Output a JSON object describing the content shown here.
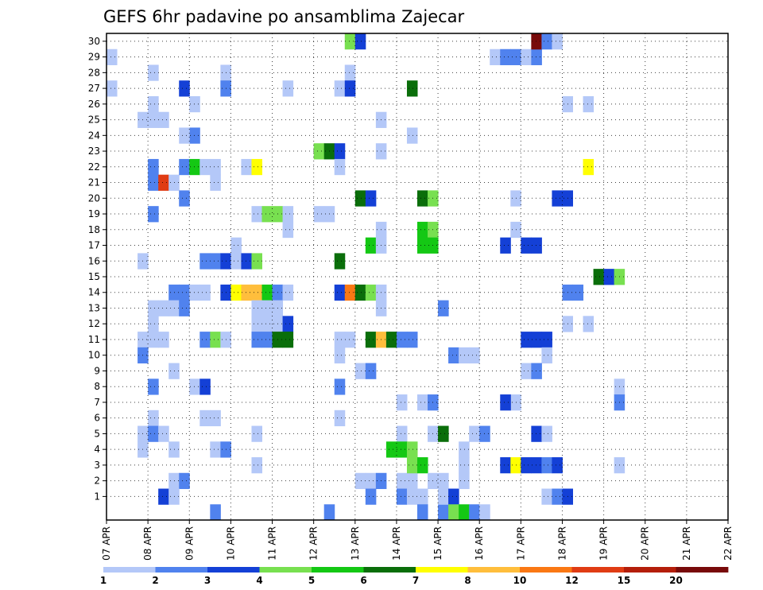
{
  "chart_data": {
    "type": "heatmap",
    "title": "GEFS 6hr padavine po ansamblima Zajecar",
    "xlabel": "",
    "ylabel": "",
    "x_tick_labels": [
      "07 APR",
      "08 APR",
      "09 APR",
      "10 APR",
      "11 APR",
      "12 APR",
      "13 APR",
      "14 APR",
      "15 APR",
      "16 APR",
      "17 APR",
      "18 APR",
      "19 APR",
      "20 APR",
      "21 APR",
      "22 APR"
    ],
    "y_tick_labels": [
      "1",
      "2",
      "3",
      "4",
      "5",
      "6",
      "7",
      "8",
      "9",
      "10",
      "11",
      "12",
      "13",
      "14",
      "15",
      "16",
      "17",
      "18",
      "19",
      "20",
      "21",
      "22",
      "23",
      "24",
      "25",
      "26",
      "27",
      "28",
      "29",
      "30"
    ],
    "x_range": [
      "07 APR 00Z",
      "22 APR 00Z"
    ],
    "y_range": [
      0,
      30
    ],
    "grid": true,
    "legend_position": "bottom",
    "legend_labels": [
      "1",
      "2",
      "3",
      "4",
      "5",
      "6",
      "7",
      "8",
      "10",
      "12",
      "15",
      "20"
    ],
    "color_scale": [
      "#b4c8f8",
      "#5082ee",
      "#1440d6",
      "#78e050",
      "#14c814",
      "#0a6e0a",
      "#ffff00",
      "#ffbe3c",
      "#fa7814",
      "#e03c14",
      "#b41e0a",
      "#780a0a"
    ],
    "cell_values": [
      {
        "col": 0,
        "row": 29,
        "cls": 0
      },
      {
        "col": 0,
        "row": 27,
        "cls": 0
      },
      {
        "col": 4,
        "row": 28,
        "cls": 0
      },
      {
        "col": 4,
        "row": 26,
        "cls": 0
      },
      {
        "col": 4,
        "row": 25,
        "cls": 0
      },
      {
        "col": 3,
        "row": 25,
        "cls": 0
      },
      {
        "col": 5,
        "row": 25,
        "cls": 0
      },
      {
        "col": 4,
        "row": 22,
        "cls": 1
      },
      {
        "col": 4,
        "row": 21,
        "cls": 1
      },
      {
        "col": 5,
        "row": 21,
        "cls": 9
      },
      {
        "col": 6,
        "row": 21,
        "cls": 0
      },
      {
        "col": 4,
        "row": 19,
        "cls": 1
      },
      {
        "col": 3,
        "row": 16,
        "cls": 0
      },
      {
        "col": 4,
        "row": 13,
        "cls": 0
      },
      {
        "col": 5,
        "row": 13,
        "cls": 0
      },
      {
        "col": 4,
        "row": 12,
        "cls": 0
      },
      {
        "col": 3,
        "row": 11,
        "cls": 0
      },
      {
        "col": 4,
        "row": 11,
        "cls": 0
      },
      {
        "col": 5,
        "row": 11,
        "cls": 0
      },
      {
        "col": 3,
        "row": 10,
        "cls": 1
      },
      {
        "col": 6,
        "row": 9,
        "cls": 0
      },
      {
        "col": 4,
        "row": 8,
        "cls": 1
      },
      {
        "col": 4,
        "row": 6,
        "cls": 0
      },
      {
        "col": 3,
        "row": 5,
        "cls": 0
      },
      {
        "col": 4,
        "row": 5,
        "cls": 1
      },
      {
        "col": 5,
        "row": 5,
        "cls": 0
      },
      {
        "col": 3,
        "row": 4,
        "cls": 0
      },
      {
        "col": 6,
        "row": 4,
        "cls": 0
      },
      {
        "col": 6,
        "row": 2,
        "cls": 0
      },
      {
        "col": 7,
        "row": 2,
        "cls": 1
      },
      {
        "col": 5,
        "row": 1,
        "cls": 2
      },
      {
        "col": 6,
        "row": 1,
        "cls": 0
      },
      {
        "col": 7,
        "row": 27,
        "cls": 2
      },
      {
        "col": 8,
        "row": 26,
        "cls": 0
      },
      {
        "col": 8,
        "row": 24,
        "cls": 1
      },
      {
        "col": 7,
        "row": 24,
        "cls": 0
      },
      {
        "col": 7,
        "row": 22,
        "cls": 1
      },
      {
        "col": 8,
        "row": 22,
        "cls": 4
      },
      {
        "col": 9,
        "row": 22,
        "cls": 0
      },
      {
        "col": 10,
        "row": 22,
        "cls": 0
      },
      {
        "col": 10,
        "row": 21,
        "cls": 0
      },
      {
        "col": 7,
        "row": 20,
        "cls": 1
      },
      {
        "col": 9,
        "row": 16,
        "cls": 1
      },
      {
        "col": 10,
        "row": 16,
        "cls": 1
      },
      {
        "col": 11,
        "row": 16,
        "cls": 2
      },
      {
        "col": 6,
        "row": 14,
        "cls": 1
      },
      {
        "col": 7,
        "row": 14,
        "cls": 1
      },
      {
        "col": 8,
        "row": 14,
        "cls": 0
      },
      {
        "col": 6,
        "row": 13,
        "cls": 0
      },
      {
        "col": 7,
        "row": 13,
        "cls": 1
      },
      {
        "col": 9,
        "row": 14,
        "cls": 0
      },
      {
        "col": 9,
        "row": 11,
        "cls": 1
      },
      {
        "col": 10,
        "row": 11,
        "cls": 3
      },
      {
        "col": 11,
        "row": 11,
        "cls": 0
      },
      {
        "col": 8,
        "row": 8,
        "cls": 0
      },
      {
        "col": 9,
        "row": 8,
        "cls": 2
      },
      {
        "col": 9,
        "row": 6,
        "cls": 0
      },
      {
        "col": 10,
        "row": 6,
        "cls": 0
      },
      {
        "col": 10,
        "row": 4,
        "cls": 0
      },
      {
        "col": 11,
        "row": 4,
        "cls": 1
      },
      {
        "col": 10,
        "row": 0,
        "cls": 1
      },
      {
        "col": 11,
        "row": 28,
        "cls": 0
      },
      {
        "col": 11,
        "row": 27,
        "cls": 1
      },
      {
        "col": 13,
        "row": 22,
        "cls": 0
      },
      {
        "col": 14,
        "row": 22,
        "cls": 6
      },
      {
        "col": 12,
        "row": 17,
        "cls": 0
      },
      {
        "col": 12,
        "row": 16,
        "cls": 0
      },
      {
        "col": 13,
        "row": 16,
        "cls": 2
      },
      {
        "col": 14,
        "row": 16,
        "cls": 3
      },
      {
        "col": 11,
        "row": 14,
        "cls": 2
      },
      {
        "col": 12,
        "row": 14,
        "cls": 6
      },
      {
        "col": 13,
        "row": 14,
        "cls": 7
      },
      {
        "col": 14,
        "row": 14,
        "cls": 7
      },
      {
        "col": 15,
        "row": 14,
        "cls": 4
      },
      {
        "col": 16,
        "row": 14,
        "cls": 1
      },
      {
        "col": 17,
        "row": 14,
        "cls": 0
      },
      {
        "col": 14,
        "row": 19,
        "cls": 0
      },
      {
        "col": 15,
        "row": 19,
        "cls": 3
      },
      {
        "col": 16,
        "row": 19,
        "cls": 3
      },
      {
        "col": 17,
        "row": 19,
        "cls": 0
      },
      {
        "col": 14,
        "row": 13,
        "cls": 0
      },
      {
        "col": 15,
        "row": 13,
        "cls": 0
      },
      {
        "col": 16,
        "row": 13,
        "cls": 0
      },
      {
        "col": 14,
        "row": 12,
        "cls": 0
      },
      {
        "col": 15,
        "row": 12,
        "cls": 0
      },
      {
        "col": 16,
        "row": 12,
        "cls": 0
      },
      {
        "col": 17,
        "row": 12,
        "cls": 2
      },
      {
        "col": 14,
        "row": 11,
        "cls": 1
      },
      {
        "col": 15,
        "row": 11,
        "cls": 1
      },
      {
        "col": 16,
        "row": 11,
        "cls": 5
      },
      {
        "col": 17,
        "row": 11,
        "cls": 5
      },
      {
        "col": 14,
        "row": 5,
        "cls": 0
      },
      {
        "col": 14,
        "row": 3,
        "cls": 0
      },
      {
        "col": 17,
        "row": 27,
        "cls": 0
      },
      {
        "col": 17,
        "row": 18,
        "cls": 0
      },
      {
        "col": 20,
        "row": 23,
        "cls": 3
      },
      {
        "col": 21,
        "row": 23,
        "cls": 5
      },
      {
        "col": 22,
        "row": 23,
        "cls": 2
      },
      {
        "col": 20,
        "row": 19,
        "cls": 0
      },
      {
        "col": 21,
        "row": 19,
        "cls": 0
      },
      {
        "col": 22,
        "row": 16,
        "cls": 5
      },
      {
        "col": 21,
        "row": 0,
        "cls": 1
      },
      {
        "col": 23,
        "row": 30,
        "cls": 3
      },
      {
        "col": 24,
        "row": 30,
        "cls": 2
      },
      {
        "col": 23,
        "row": 28,
        "cls": 0
      },
      {
        "col": 22,
        "row": 27,
        "cls": 0
      },
      {
        "col": 23,
        "row": 27,
        "cls": 2
      },
      {
        "col": 22,
        "row": 22,
        "cls": 0
      },
      {
        "col": 24,
        "row": 20,
        "cls": 5
      },
      {
        "col": 25,
        "row": 20,
        "cls": 2
      },
      {
        "col": 25,
        "row": 17,
        "cls": 4
      },
      {
        "col": 26,
        "row": 17,
        "cls": 0
      },
      {
        "col": 22,
        "row": 14,
        "cls": 2
      },
      {
        "col": 23,
        "row": 14,
        "cls": 8
      },
      {
        "col": 24,
        "row": 14,
        "cls": 5
      },
      {
        "col": 25,
        "row": 14,
        "cls": 3
      },
      {
        "col": 26,
        "row": 14,
        "cls": 0
      },
      {
        "col": 22,
        "row": 11,
        "cls": 0
      },
      {
        "col": 23,
        "row": 11,
        "cls": 0
      },
      {
        "col": 25,
        "row": 11,
        "cls": 5
      },
      {
        "col": 26,
        "row": 11,
        "cls": 7
      },
      {
        "col": 27,
        "row": 11,
        "cls": 5
      },
      {
        "col": 28,
        "row": 11,
        "cls": 1
      },
      {
        "col": 29,
        "row": 11,
        "cls": 1
      },
      {
        "col": 22,
        "row": 10,
        "cls": 0
      },
      {
        "col": 24,
        "row": 9,
        "cls": 0
      },
      {
        "col": 25,
        "row": 9,
        "cls": 1
      },
      {
        "col": 22,
        "row": 8,
        "cls": 1
      },
      {
        "col": 22,
        "row": 6,
        "cls": 0
      },
      {
        "col": 24,
        "row": 2,
        "cls": 0
      },
      {
        "col": 25,
        "row": 2,
        "cls": 0
      },
      {
        "col": 26,
        "row": 2,
        "cls": 1
      },
      {
        "col": 25,
        "row": 1,
        "cls": 1
      },
      {
        "col": 26,
        "row": 25,
        "cls": 0
      },
      {
        "col": 26,
        "row": 23,
        "cls": 0
      },
      {
        "col": 26,
        "row": 18,
        "cls": 0
      },
      {
        "col": 26,
        "row": 13,
        "cls": 0
      },
      {
        "col": 29,
        "row": 27,
        "cls": 5
      },
      {
        "col": 29,
        "row": 24,
        "cls": 0
      },
      {
        "col": 28,
        "row": 5,
        "cls": 0
      },
      {
        "col": 28,
        "row": 4,
        "cls": 4
      },
      {
        "col": 27,
        "row": 4,
        "cls": 4
      },
      {
        "col": 29,
        "row": 4,
        "cls": 3
      },
      {
        "col": 28,
        "row": 7,
        "cls": 0
      },
      {
        "col": 28,
        "row": 2,
        "cls": 0
      },
      {
        "col": 29,
        "row": 2,
        "cls": 0
      },
      {
        "col": 28,
        "row": 1,
        "cls": 1
      },
      {
        "col": 29,
        "row": 1,
        "cls": 0
      },
      {
        "col": 29,
        "row": 3,
        "cls": 3
      },
      {
        "col": 30,
        "row": 3,
        "cls": 4
      },
      {
        "col": 30,
        "row": 18,
        "cls": 4
      },
      {
        "col": 31,
        "row": 18,
        "cls": 3
      },
      {
        "col": 30,
        "row": 17,
        "cls": 4
      },
      {
        "col": 31,
        "row": 17,
        "cls": 4
      },
      {
        "col": 30,
        "row": 20,
        "cls": 5
      },
      {
        "col": 31,
        "row": 20,
        "cls": 3
      },
      {
        "col": 31,
        "row": 5,
        "cls": 0
      },
      {
        "col": 32,
        "row": 5,
        "cls": 5
      },
      {
        "col": 30,
        "row": 7,
        "cls": 0
      },
      {
        "col": 31,
        "row": 7,
        "cls": 1
      },
      {
        "col": 30,
        "row": 1,
        "cls": 0
      },
      {
        "col": 30,
        "row": 0,
        "cls": 1
      },
      {
        "col": 32,
        "row": 0,
        "cls": 1
      },
      {
        "col": 31,
        "row": 2,
        "cls": 0
      },
      {
        "col": 32,
        "row": 2,
        "cls": 0
      },
      {
        "col": 32,
        "row": 1,
        "cls": 0
      },
      {
        "col": 33,
        "row": 1,
        "cls": 2
      },
      {
        "col": 33,
        "row": 0,
        "cls": 3
      },
      {
        "col": 34,
        "row": 0,
        "cls": 4
      },
      {
        "col": 35,
        "row": 0,
        "cls": 1
      },
      {
        "col": 36,
        "row": 0,
        "cls": 0
      },
      {
        "col": 34,
        "row": 2,
        "cls": 0
      },
      {
        "col": 34,
        "row": 3,
        "cls": 0
      },
      {
        "col": 34,
        "row": 4,
        "cls": 0
      },
      {
        "col": 32,
        "row": 13,
        "cls": 1
      },
      {
        "col": 33,
        "row": 10,
        "cls": 1
      },
      {
        "col": 34,
        "row": 10,
        "cls": 0
      },
      {
        "col": 35,
        "row": 10,
        "cls": 0
      },
      {
        "col": 35,
        "row": 5,
        "cls": 0
      },
      {
        "col": 36,
        "row": 5,
        "cls": 1
      },
      {
        "col": 37,
        "row": 29,
        "cls": 0
      },
      {
        "col": 38,
        "row": 29,
        "cls": 1
      },
      {
        "col": 39,
        "row": 29,
        "cls": 1
      },
      {
        "col": 40,
        "row": 29,
        "cls": 0
      },
      {
        "col": 41,
        "row": 29,
        "cls": 1
      },
      {
        "col": 39,
        "row": 18,
        "cls": 0
      },
      {
        "col": 38,
        "row": 17,
        "cls": 2
      },
      {
        "col": 40,
        "row": 17,
        "cls": 2
      },
      {
        "col": 41,
        "row": 17,
        "cls": 2
      },
      {
        "col": 39,
        "row": 20,
        "cls": 0
      },
      {
        "col": 40,
        "row": 11,
        "cls": 2
      },
      {
        "col": 41,
        "row": 11,
        "cls": 2
      },
      {
        "col": 42,
        "row": 11,
        "cls": 2
      },
      {
        "col": 40,
        "row": 9,
        "cls": 0
      },
      {
        "col": 42,
        "row": 10,
        "cls": 0
      },
      {
        "col": 41,
        "row": 9,
        "cls": 1
      },
      {
        "col": 39,
        "row": 7,
        "cls": 0
      },
      {
        "col": 38,
        "row": 7,
        "cls": 2
      },
      {
        "col": 41,
        "row": 5,
        "cls": 2
      },
      {
        "col": 42,
        "row": 5,
        "cls": 0
      },
      {
        "col": 38,
        "row": 3,
        "cls": 2
      },
      {
        "col": 39,
        "row": 3,
        "cls": 6
      },
      {
        "col": 40,
        "row": 3,
        "cls": 2
      },
      {
        "col": 41,
        "row": 3,
        "cls": 2
      },
      {
        "col": 42,
        "row": 3,
        "cls": 1
      },
      {
        "col": 43,
        "row": 3,
        "cls": 2
      },
      {
        "col": 42,
        "row": 1,
        "cls": 0
      },
      {
        "col": 43,
        "row": 1,
        "cls": 1
      },
      {
        "col": 44,
        "row": 1,
        "cls": 2
      },
      {
        "col": 41,
        "row": 30,
        "cls": 11
      },
      {
        "col": 42,
        "row": 30,
        "cls": 1
      },
      {
        "col": 43,
        "row": 30,
        "cls": 0
      },
      {
        "col": 43,
        "row": 20,
        "cls": 2
      },
      {
        "col": 44,
        "row": 20,
        "cls": 2
      },
      {
        "col": 44,
        "row": 26,
        "cls": 0
      },
      {
        "col": 46,
        "row": 26,
        "cls": 0
      },
      {
        "col": 46,
        "row": 22,
        "cls": 6
      },
      {
        "col": 44,
        "row": 14,
        "cls": 1
      },
      {
        "col": 45,
        "row": 14,
        "cls": 1
      },
      {
        "col": 44,
        "row": 12,
        "cls": 0
      },
      {
        "col": 46,
        "row": 12,
        "cls": 0
      },
      {
        "col": 47,
        "row": 15,
        "cls": 5
      },
      {
        "col": 48,
        "row": 15,
        "cls": 2
      },
      {
        "col": 49,
        "row": 15,
        "cls": 3
      },
      {
        "col": 49,
        "row": 8,
        "cls": 0
      },
      {
        "col": 49,
        "row": 7,
        "cls": 1
      },
      {
        "col": 49,
        "row": 3,
        "cls": 0
      }
    ]
  }
}
